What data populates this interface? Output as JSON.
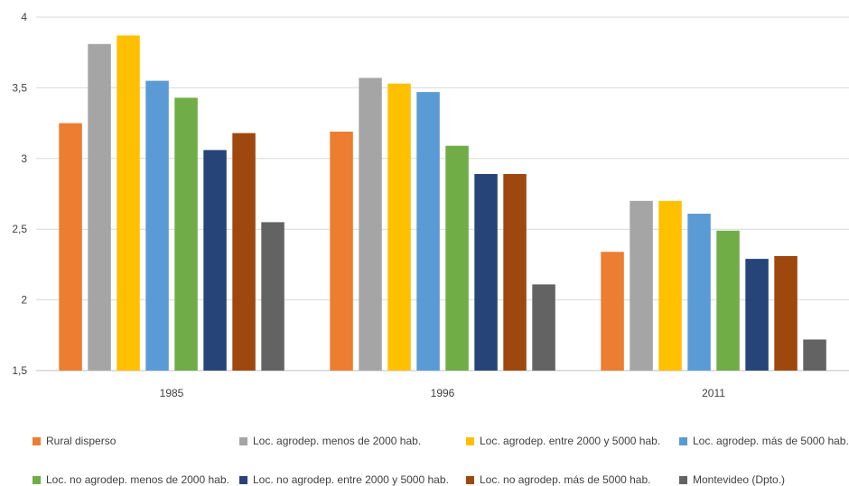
{
  "chart_data": {
    "type": "bar",
    "categories": [
      "1985",
      "1996",
      "2011"
    ],
    "series": [
      {
        "name": "Rural disperso",
        "color": "#ED7D31",
        "values": [
          3.25,
          3.19,
          2.34
        ]
      },
      {
        "name": "Loc. agrodep. menos de 2000 hab.",
        "color": "#A5A5A5",
        "values": [
          3.81,
          3.57,
          2.7
        ]
      },
      {
        "name": "Loc. agrodep. entre 2000 y 5000 hab.",
        "color": "#FFC000",
        "values": [
          3.87,
          3.53,
          2.7
        ]
      },
      {
        "name": "Loc. agrodep. más de 5000 hab.",
        "color": "#5B9BD5",
        "values": [
          3.55,
          3.47,
          2.61
        ]
      },
      {
        "name": "Loc. no agrodep. menos de 2000 hab.",
        "color": "#70AD47",
        "values": [
          3.43,
          3.09,
          2.49
        ]
      },
      {
        "name": "Loc. no agrodep. entre 2000 y 5000 hab.",
        "color": "#264478",
        "values": [
          3.06,
          2.89,
          2.29
        ]
      },
      {
        "name": "Loc. no agrodep. más de 5000 hab.",
        "color": "#9E480E",
        "values": [
          3.18,
          2.89,
          2.31
        ]
      },
      {
        "name": "Montevideo  (Dpto.)",
        "color": "#636363",
        "values": [
          2.55,
          2.11,
          1.72
        ]
      }
    ],
    "title": "",
    "xlabel": "",
    "ylabel": "",
    "ylim": [
      1.5,
      4
    ],
    "yticks": [
      "1,5",
      "2",
      "2,5",
      "3",
      "3,5",
      "4"
    ],
    "grid": true,
    "legend_position": "bottom"
  }
}
